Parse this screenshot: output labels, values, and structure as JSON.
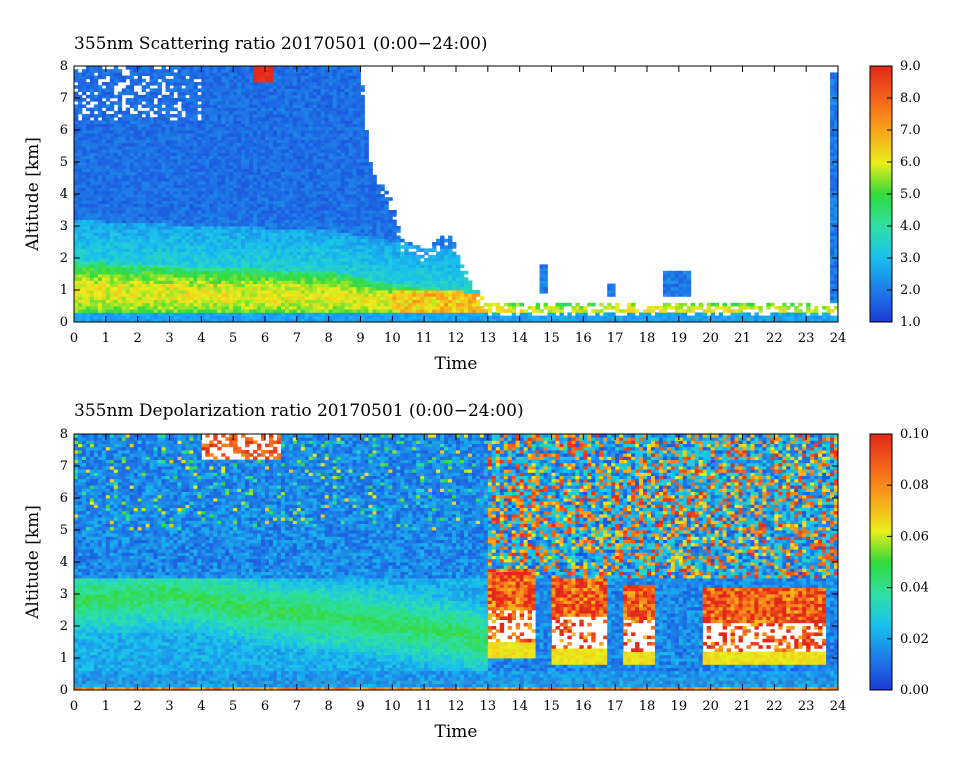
{
  "chart_data": [
    {
      "type": "heatmap",
      "title": "355nm Scattering ratio  20170501 (0:00−24:00)",
      "xlabel": "Time",
      "ylabel": "Altitude [km]",
      "xlim": [
        0,
        24
      ],
      "ylim": [
        0,
        8
      ],
      "x_ticks": [
        "0",
        "1",
        "2",
        "3",
        "4",
        "5",
        "6",
        "7",
        "8",
        "9",
        "10",
        "11",
        "12",
        "13",
        "14",
        "15",
        "16",
        "17",
        "18",
        "19",
        "20",
        "21",
        "22",
        "23",
        "24"
      ],
      "y_ticks": [
        "0",
        "1",
        "2",
        "3",
        "4",
        "5",
        "6",
        "7",
        "8"
      ],
      "colorbar": {
        "min": 1.0,
        "max": 9.0,
        "ticks": [
          "1.0",
          "2.0",
          "3.0",
          "4.0",
          "5.0",
          "6.0",
          "7.0",
          "8.0",
          "9.0"
        ]
      },
      "features": {
        "boundary_layer_top_km": [
          [
            0,
            1.9
          ],
          [
            4,
            1.7
          ],
          [
            8,
            1.6
          ],
          [
            10,
            1.2
          ],
          [
            12,
            1.0
          ],
          [
            13,
            0.8
          ],
          [
            15,
            0.6
          ],
          [
            16,
            0.65
          ],
          [
            17,
            0.75
          ],
          [
            20,
            0.7
          ],
          [
            23,
            0.65
          ],
          [
            23.6,
            0.6
          ]
        ],
        "signal_ceiling_km": [
          [
            0,
            8
          ],
          [
            9,
            8
          ],
          [
            9.3,
            5.0
          ],
          [
            10,
            3.8
          ],
          [
            10.3,
            2.6
          ],
          [
            11,
            2.3
          ],
          [
            11.8,
            2.8
          ],
          [
            12.5,
            1.2
          ],
          [
            13,
            0.6
          ],
          [
            24,
            0.6
          ]
        ],
        "clouds": [
          {
            "time": [
              5.6,
              6.2
            ],
            "alt_km": [
              7.5,
              8.0
            ],
            "value": 9.0
          },
          {
            "time": [
              14.6,
              14.9
            ],
            "alt_km": [
              0.9,
              1.8
            ],
            "value": 2.0
          },
          {
            "time": [
              16.8,
              17.0
            ],
            "alt_km": [
              0.8,
              1.2
            ],
            "value": 2.0
          },
          {
            "time": [
              18.5,
              19.4
            ],
            "alt_km": [
              0.8,
              1.6
            ],
            "value": 2.0
          },
          {
            "time": [
              23.7,
              24.0
            ],
            "alt_km": [
              0.6,
              7.8
            ],
            "value": 2.0
          }
        ]
      }
    },
    {
      "type": "heatmap",
      "title": "355nm Depolarization ratio  20170501 (0:00−24:00)",
      "xlabel": "Time",
      "ylabel": "Altitude [km]",
      "xlim": [
        0,
        24
      ],
      "ylim": [
        0,
        8
      ],
      "x_ticks": [
        "0",
        "1",
        "2",
        "3",
        "4",
        "5",
        "6",
        "7",
        "8",
        "9",
        "10",
        "11",
        "12",
        "13",
        "14",
        "15",
        "16",
        "17",
        "18",
        "19",
        "20",
        "21",
        "22",
        "23",
        "24"
      ],
      "y_ticks": [
        "0",
        "1",
        "2",
        "3",
        "4",
        "5",
        "6",
        "7",
        "8"
      ],
      "colorbar": {
        "min": 0.0,
        "max": 0.1,
        "ticks": [
          "0.00",
          "0.02",
          "0.04",
          "0.06",
          "0.08",
          "0.10"
        ]
      },
      "features": {
        "dust_layer_km": [
          [
            0,
            2.8
          ],
          [
            3,
            3.0
          ],
          [
            6,
            2.5
          ],
          [
            9,
            2.2
          ],
          [
            12,
            1.8
          ],
          [
            13,
            1.5
          ]
        ],
        "high_depol_blocks": [
          {
            "time": [
              13.0,
              14.5
            ],
            "alt_km": [
              1.0,
              3.8
            ]
          },
          {
            "time": [
              15.0,
              16.8
            ],
            "alt_km": [
              0.8,
              3.5
            ]
          },
          {
            "time": [
              17.3,
              18.3
            ],
            "alt_km": [
              0.8,
              3.3
            ]
          },
          {
            "time": [
              19.8,
              23.6
            ],
            "alt_km": [
              0.8,
              3.2
            ]
          }
        ],
        "cloud_top_km": [
          {
            "time": [
              4.0,
              6.5
            ],
            "alt_km": [
              7.2,
              8.0
            ]
          }
        ]
      }
    }
  ]
}
